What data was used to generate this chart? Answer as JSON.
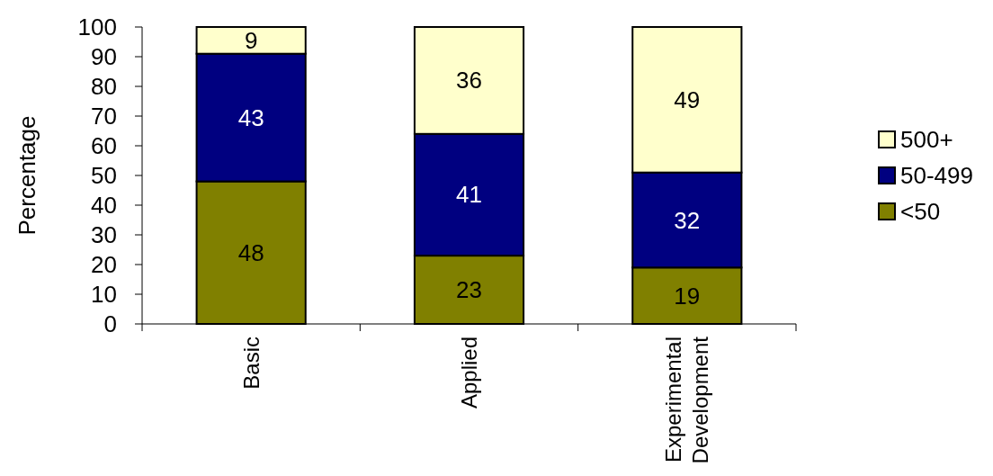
{
  "chart_data": {
    "type": "bar",
    "stacked": true,
    "ylabel": "Percentage",
    "categories": [
      "Basic",
      "Applied",
      "Experimental Development"
    ],
    "series": [
      {
        "name": "<50",
        "color": "#808000",
        "values": [
          48,
          23,
          19
        ]
      },
      {
        "name": "50-499",
        "color": "#000080",
        "values": [
          43,
          41,
          32
        ]
      },
      {
        "name": "500+",
        "color": "#ffffcc",
        "values": [
          9,
          36,
          49
        ]
      }
    ],
    "ylim": [
      0,
      100
    ],
    "yticks": [
      0,
      10,
      20,
      30,
      40,
      50,
      60,
      70,
      80,
      90,
      100
    ],
    "data_labels": true,
    "legend": "right",
    "grid": false
  }
}
